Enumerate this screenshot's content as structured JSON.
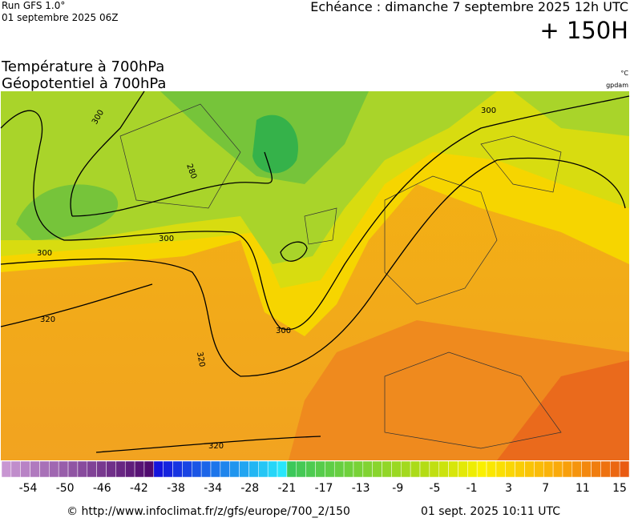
{
  "header": {
    "run": "Run GFS 1.0°",
    "run_date": "01 septembre 2025 06Z",
    "valid": "Echéance : dimanche 7 septembre 2025 12h UTC",
    "lead": "+ 150H"
  },
  "titles": [
    "Température à 700hPa",
    "Géopotentiel à 700hPa"
  ],
  "units": [
    "°C",
    "gpdam"
  ],
  "contour_labels": [
    300,
    280,
    300,
    300,
    300,
    300,
    320,
    320,
    320
  ],
  "colorbar": {
    "ticks": [
      -54,
      -50,
      -46,
      -42,
      -38,
      -34,
      -28,
      -21,
      -17,
      -13,
      -9,
      -5,
      -1,
      3,
      7,
      11,
      15
    ]
  },
  "footer": {
    "source": "© http://www.infoclimat.fr/z/gfs/europe/700_2/150",
    "generated": "01 sept. 2025 10:11 UTC"
  }
}
